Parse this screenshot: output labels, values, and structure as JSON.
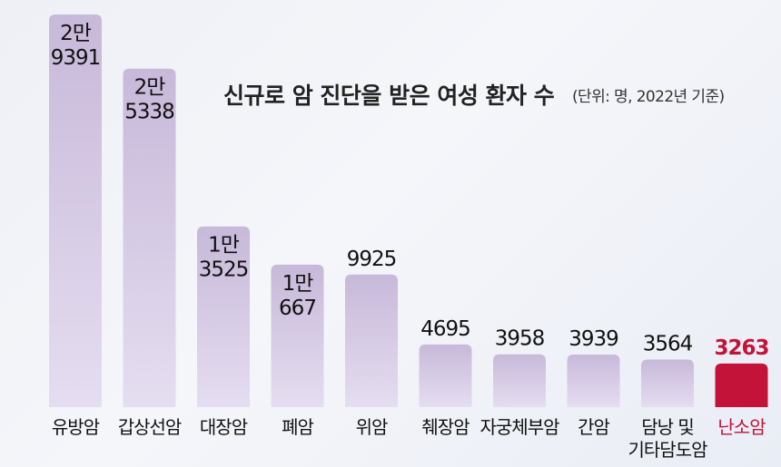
{
  "chart_data": {
    "type": "bar",
    "title": "신규로 암 진단을 받은 여성 환자 수",
    "subtitle": "(단위: 명, 2022년 기준)",
    "categories": [
      "유방암",
      "갑상선암",
      "대장암",
      "폐암",
      "위암",
      "췌장암",
      "자궁체부암",
      "간암",
      "담낭 및 기타담도암",
      "난소암"
    ],
    "category_lines": [
      [
        "유방암"
      ],
      [
        "갑상선암"
      ],
      [
        "대장암"
      ],
      [
        "폐암"
      ],
      [
        "위암"
      ],
      [
        "췌장암"
      ],
      [
        "자궁체부암"
      ],
      [
        "간암"
      ],
      [
        "담낭 및",
        "기타담도암"
      ],
      [
        "난소암"
      ]
    ],
    "values": [
      29391,
      25338,
      13525,
      10667,
      9925,
      4695,
      3958,
      3939,
      3564,
      3263
    ],
    "value_labels": [
      [
        "2만",
        "9391"
      ],
      [
        "2만",
        "5338"
      ],
      [
        "1만",
        "3525"
      ],
      [
        "1만",
        "667"
      ],
      [
        "9925"
      ],
      [
        "4695"
      ],
      [
        "3958"
      ],
      [
        "3939"
      ],
      [
        "3564"
      ],
      [
        "3263"
      ]
    ],
    "highlight_index": 9,
    "colors": {
      "bar_top": "#c7b9d9",
      "bar_bottom": "#e5ddf0",
      "highlight": "#c41339",
      "text": "#111111"
    }
  }
}
